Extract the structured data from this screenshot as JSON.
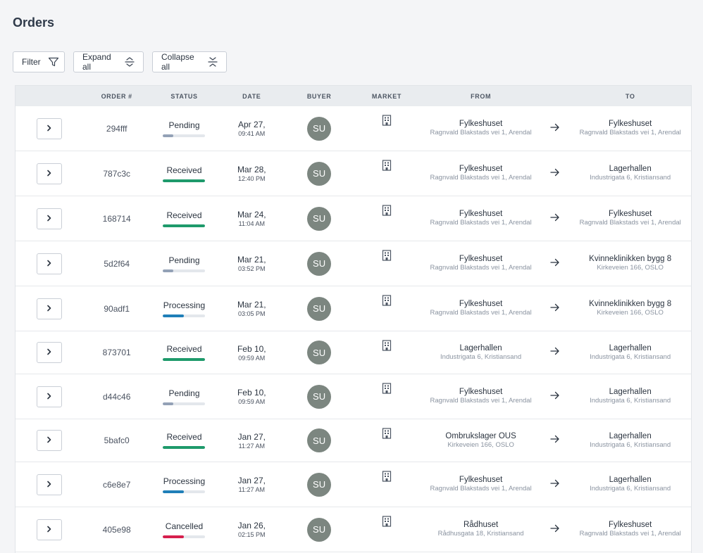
{
  "page_title": "Orders",
  "toolbar": {
    "filter_label": "Filter",
    "expand_label": "Expand all",
    "collapse_label": "Collapse all"
  },
  "columns": {
    "order": "ORDER #",
    "status": "STATUS",
    "date": "DATE",
    "buyer": "BUYER",
    "market": "MARKET",
    "from": "FROM",
    "to": "TO"
  },
  "status_colors": {
    "Pending": "#93a1b6",
    "Received": "#1e9a6b",
    "Processing": "#1f7fb8",
    "Cancelled": "#d61f4d"
  },
  "rows": [
    {
      "order": "294fff",
      "status": "Pending",
      "progress": 0.25,
      "date": "Apr 27,",
      "time": "09:41 AM",
      "buyer": "SU",
      "from_name": "Fylkeshuset",
      "from_addr": "Ragnvald Blakstads vei 1, Arendal",
      "to_name": "Fylkeshuset",
      "to_addr": "Ragnvald Blakstads vei 1, Arendal"
    },
    {
      "order": "787c3c",
      "status": "Received",
      "progress": 1.0,
      "date": "Mar 28,",
      "time": "12:40 PM",
      "buyer": "SU",
      "from_name": "Fylkeshuset",
      "from_addr": "Ragnvald Blakstads vei 1, Arendal",
      "to_name": "Lagerhallen",
      "to_addr": "Industrigata 6, Kristiansand"
    },
    {
      "order": "168714",
      "status": "Received",
      "progress": 1.0,
      "date": "Mar 24,",
      "time": "11:04 AM",
      "buyer": "SU",
      "from_name": "Fylkeshuset",
      "from_addr": "Ragnvald Blakstads vei 1, Arendal",
      "to_name": "Fylkeshuset",
      "to_addr": "Ragnvald Blakstads vei 1, Arendal"
    },
    {
      "order": "5d2f64",
      "status": "Pending",
      "progress": 0.25,
      "date": "Mar 21,",
      "time": "03:52 PM",
      "buyer": "SU",
      "from_name": "Fylkeshuset",
      "from_addr": "Ragnvald Blakstads vei 1, Arendal",
      "to_name": "Kvinneklinikken bygg 8",
      "to_addr": "Kirkeveien 166, OSLO"
    },
    {
      "order": "90adf1",
      "status": "Processing",
      "progress": 0.5,
      "date": "Mar 21,",
      "time": "03:05 PM",
      "buyer": "SU",
      "from_name": "Fylkeshuset",
      "from_addr": "Ragnvald Blakstads vei 1, Arendal",
      "to_name": "Kvinneklinikken bygg 8",
      "to_addr": "Kirkeveien 166, OSLO"
    },
    {
      "order": "873701",
      "status": "Received",
      "progress": 1.0,
      "date": "Feb 10,",
      "time": "09:59 AM",
      "buyer": "SU",
      "from_name": "Lagerhallen",
      "from_addr": "Industrigata 6, Kristiansand",
      "to_name": "Lagerhallen",
      "to_addr": "Industrigata 6, Kristiansand"
    },
    {
      "order": "d44c46",
      "status": "Pending",
      "progress": 0.25,
      "date": "Feb 10,",
      "time": "09:59 AM",
      "buyer": "SU",
      "from_name": "Fylkeshuset",
      "from_addr": "Ragnvald Blakstads vei 1, Arendal",
      "to_name": "Lagerhallen",
      "to_addr": "Industrigata 6, Kristiansand"
    },
    {
      "order": "5bafc0",
      "status": "Received",
      "progress": 1.0,
      "date": "Jan 27,",
      "time": "11:27 AM",
      "buyer": "SU",
      "from_name": "Ombrukslager OUS",
      "from_addr": "Kirkeveien 166, OSLO",
      "to_name": "Lagerhallen",
      "to_addr": "Industrigata 6, Kristiansand"
    },
    {
      "order": "c6e8e7",
      "status": "Processing",
      "progress": 0.5,
      "date": "Jan 27,",
      "time": "11:27 AM",
      "buyer": "SU",
      "from_name": "Fylkeshuset",
      "from_addr": "Ragnvald Blakstads vei 1, Arendal",
      "to_name": "Lagerhallen",
      "to_addr": "Industrigata 6, Kristiansand"
    },
    {
      "order": "405e98",
      "status": "Cancelled",
      "progress": 0.5,
      "date": "Jan 26,",
      "time": "02:15 PM",
      "buyer": "SU",
      "from_name": "Rådhuset",
      "from_addr": "Rådhusgata 18, Kristiansand",
      "to_name": "Fylkeshuset",
      "to_addr": "Ragnvald Blakstads vei 1, Arendal"
    }
  ]
}
